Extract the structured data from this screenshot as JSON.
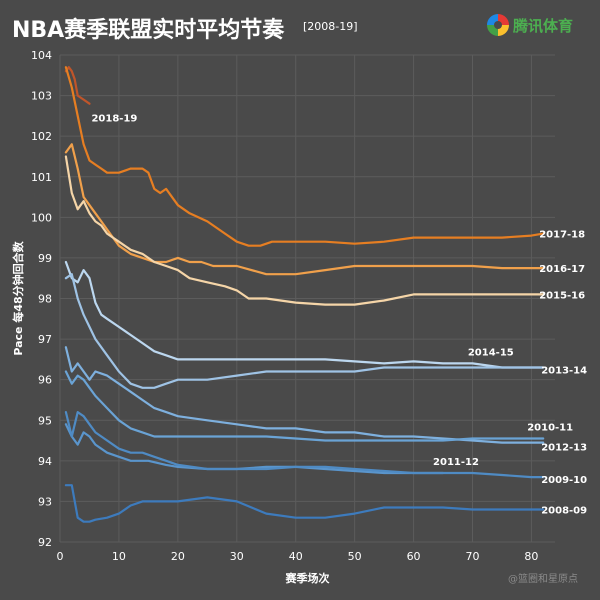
{
  "title": "NBA赛季联盟实时平均节奏",
  "subtitle": "[2008-19]",
  "logo": {
    "name": "腾讯体育",
    "tagline": ""
  },
  "watermark": "@篮圈和星原点",
  "colors": {
    "background": "#4a4a4a",
    "grid": "#5c5c5c",
    "text": "#ffffff"
  },
  "chart_data": {
    "type": "line",
    "title": "NBA赛季联盟实时平均节奏",
    "xlabel": "赛季场次",
    "ylabel": "Pace 每48分钟回合数",
    "xlim": [
      0,
      84
    ],
    "ylim": [
      92,
      104
    ],
    "xticks": [
      0,
      10,
      20,
      30,
      40,
      50,
      60,
      70,
      80
    ],
    "yticks": [
      92,
      93,
      94,
      95,
      96,
      97,
      98,
      99,
      100,
      101,
      102,
      103,
      104
    ],
    "grid": true,
    "series": [
      {
        "name": "2018-19",
        "color": "#c0552a",
        "x": [
          1,
          1.5,
          2,
          2.5,
          3,
          4,
          5
        ],
        "y": [
          103.6,
          103.7,
          103.6,
          103.4,
          103.0,
          102.9,
          102.8
        ]
      },
      {
        "name": "2017-18",
        "color": "#e67e22",
        "x": [
          1,
          2,
          3,
          4,
          5,
          6,
          7,
          8,
          10,
          12,
          14,
          15,
          16,
          17,
          18,
          20,
          22,
          25,
          28,
          30,
          32,
          34,
          36,
          38,
          40,
          45,
          50,
          55,
          60,
          65,
          70,
          75,
          80,
          82
        ],
        "y": [
          103.7,
          103.2,
          102.5,
          101.8,
          101.4,
          101.3,
          101.2,
          101.1,
          101.1,
          101.2,
          101.2,
          101.1,
          100.7,
          100.6,
          100.7,
          100.3,
          100.1,
          99.9,
          99.6,
          99.4,
          99.3,
          99.3,
          99.4,
          99.4,
          99.4,
          99.4,
          99.35,
          99.4,
          99.5,
          99.5,
          99.5,
          99.5,
          99.55,
          99.6
        ]
      },
      {
        "name": "2016-17",
        "color": "#f0a04b",
        "x": [
          1,
          2,
          3,
          4,
          5,
          6,
          7,
          8,
          9,
          10,
          12,
          14,
          16,
          18,
          20,
          22,
          24,
          26,
          28,
          30,
          35,
          40,
          45,
          50,
          55,
          60,
          65,
          70,
          75,
          80,
          82
        ],
        "y": [
          101.6,
          101.8,
          101.2,
          100.5,
          100.3,
          100.1,
          99.9,
          99.7,
          99.5,
          99.3,
          99.1,
          99.0,
          98.9,
          98.9,
          99.0,
          98.9,
          98.9,
          98.8,
          98.8,
          98.8,
          98.6,
          98.6,
          98.7,
          98.8,
          98.8,
          98.8,
          98.8,
          98.8,
          98.75,
          98.75,
          98.75
        ]
      },
      {
        "name": "2015-16",
        "color": "#f5d5a8",
        "x": [
          1,
          2,
          3,
          4,
          5,
          6,
          7,
          8,
          10,
          12,
          14,
          16,
          18,
          20,
          22,
          25,
          28,
          30,
          32,
          35,
          40,
          45,
          50,
          55,
          60,
          65,
          70,
          75,
          80,
          82
        ],
        "y": [
          101.5,
          100.6,
          100.2,
          100.4,
          100.1,
          99.9,
          99.8,
          99.6,
          99.4,
          99.2,
          99.1,
          98.9,
          98.8,
          98.7,
          98.5,
          98.4,
          98.3,
          98.2,
          98.0,
          98.0,
          97.9,
          97.85,
          97.85,
          97.95,
          98.1,
          98.1,
          98.1,
          98.1,
          98.1,
          98.1
        ]
      },
      {
        "name": "2014-15",
        "color": "#bcd7ef",
        "x": [
          1,
          2,
          3,
          4,
          5,
          6,
          7,
          8,
          10,
          12,
          14,
          16,
          18,
          20,
          25,
          30,
          35,
          40,
          45,
          50,
          55,
          60,
          65,
          70,
          75,
          80,
          82
        ],
        "y": [
          98.9,
          98.5,
          98.4,
          98.7,
          98.5,
          97.9,
          97.6,
          97.5,
          97.3,
          97.1,
          96.9,
          96.7,
          96.6,
          96.5,
          96.5,
          96.5,
          96.5,
          96.5,
          96.5,
          96.45,
          96.4,
          96.45,
          96.4,
          96.4,
          96.3,
          96.3,
          96.3
        ]
      },
      {
        "name": "2013-14",
        "color": "#9fc3e5",
        "x": [
          1,
          2,
          3,
          4,
          5,
          6,
          8,
          10,
          12,
          14,
          16,
          18,
          20,
          22,
          25,
          30,
          35,
          40,
          45,
          50,
          55,
          60,
          65,
          70,
          75,
          80,
          82
        ],
        "y": [
          98.5,
          98.6,
          98.0,
          97.6,
          97.3,
          97.0,
          96.6,
          96.2,
          95.9,
          95.8,
          95.8,
          95.9,
          96.0,
          96.0,
          96.0,
          96.1,
          96.2,
          96.2,
          96.2,
          96.2,
          96.3,
          96.3,
          96.3,
          96.3,
          96.3,
          96.3,
          96.3
        ]
      },
      {
        "name": "2012-13",
        "color": "#7eb0de",
        "x": [
          1,
          2,
          3,
          4,
          5,
          6,
          8,
          10,
          12,
          14,
          16,
          18,
          20,
          25,
          30,
          35,
          40,
          45,
          50,
          55,
          60,
          65,
          70,
          75,
          80,
          82
        ],
        "y": [
          96.8,
          96.2,
          96.4,
          96.2,
          96.0,
          96.2,
          96.1,
          95.9,
          95.7,
          95.5,
          95.3,
          95.2,
          95.1,
          95.0,
          94.9,
          94.8,
          94.8,
          94.7,
          94.7,
          94.6,
          94.6,
          94.55,
          94.5,
          94.45,
          94.45,
          94.45
        ]
      },
      {
        "name": "2010-11",
        "color": "#6aa3d5",
        "x": [
          1,
          2,
          3,
          4,
          5,
          6,
          8,
          10,
          12,
          14,
          16,
          18,
          20,
          25,
          30,
          35,
          40,
          45,
          50,
          55,
          60,
          65,
          70,
          75,
          80,
          82
        ],
        "y": [
          96.2,
          95.9,
          96.1,
          96.0,
          95.8,
          95.6,
          95.3,
          95.0,
          94.8,
          94.7,
          94.6,
          94.6,
          94.6,
          94.6,
          94.6,
          94.6,
          94.55,
          94.5,
          94.5,
          94.5,
          94.5,
          94.5,
          94.55,
          94.55,
          94.55,
          94.55
        ]
      },
      {
        "name": "2011-12",
        "color": "#5a95cc",
        "x": [
          1,
          2,
          3,
          4,
          5,
          6,
          8,
          10,
          12,
          15,
          18,
          20,
          25,
          30,
          35,
          40,
          45,
          50,
          55,
          60,
          65
        ],
        "y": [
          94.9,
          94.6,
          94.4,
          94.7,
          94.6,
          94.4,
          94.2,
          94.1,
          94.0,
          94.0,
          93.9,
          93.85,
          93.8,
          93.8,
          93.85,
          93.85,
          93.8,
          93.75,
          93.7,
          93.7,
          93.7
        ]
      },
      {
        "name": "2009-10",
        "color": "#4f8bc4",
        "x": [
          1,
          2,
          3,
          4,
          5,
          6,
          8,
          10,
          12,
          14,
          16,
          18,
          20,
          25,
          30,
          35,
          40,
          45,
          50,
          55,
          60,
          65,
          70,
          75,
          80,
          82
        ],
        "y": [
          95.2,
          94.6,
          95.2,
          95.1,
          94.9,
          94.7,
          94.5,
          94.3,
          94.2,
          94.2,
          94.1,
          94.0,
          93.9,
          93.8,
          93.8,
          93.8,
          93.85,
          93.85,
          93.8,
          93.75,
          93.7,
          93.7,
          93.7,
          93.65,
          93.6,
          93.6
        ]
      },
      {
        "name": "2008-09",
        "color": "#3d7bbd",
        "x": [
          1,
          2,
          3,
          4,
          5,
          6,
          8,
          10,
          12,
          14,
          16,
          18,
          20,
          25,
          30,
          35,
          40,
          45,
          50,
          55,
          60,
          65,
          70,
          75,
          80,
          82
        ],
        "y": [
          93.4,
          93.4,
          92.6,
          92.5,
          92.5,
          92.55,
          92.6,
          92.7,
          92.9,
          93.0,
          93.0,
          93.0,
          93.0,
          93.1,
          93.0,
          92.7,
          92.6,
          92.6,
          92.7,
          92.85,
          92.85,
          92.85,
          92.8,
          92.8,
          92.8,
          92.8
        ]
      }
    ]
  }
}
